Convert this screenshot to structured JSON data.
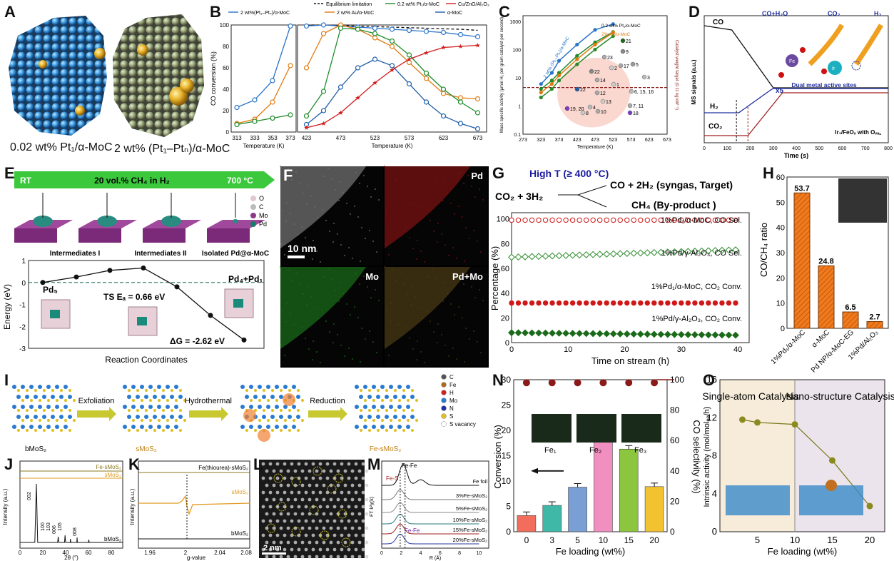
{
  "panels": {
    "A": {
      "label": "A",
      "caption_left": "0.02 wt% Pt₁/α-MoC",
      "caption_right": "2 wt% (Pt₁–Ptₙ)/α-MoC"
    },
    "B": {
      "label": "B"
    },
    "C": {
      "label": "C"
    },
    "D": {
      "label": "D",
      "ylabel": "MS signals (a.u.)",
      "xlabel": "Time (s)",
      "co_label": "CO",
      "h2_label": "H₂",
      "co2_label": "CO₂",
      "x5": "x5",
      "reaction_co": "CO+H₂O",
      "reaction_co2": "CO₂",
      "reaction_h2": "H₂",
      "sites": "Dual metal active sites",
      "catalyst": "Ir₁/FeOₓ with Oᵥₐ꜀",
      "fe": "Fe",
      "ir": "Ir",
      "ovac": "Oᵥₐ꜀"
    },
    "E": {
      "label": "E",
      "rt": "RT",
      "gas": "20 vol.% CH₄ in H₂",
      "temp": "700 °C",
      "stages": [
        "Intermediates I",
        "Intermediates II",
        "Isolated Pd@α-MoC"
      ],
      "legend": [
        "O",
        "C",
        "Mo",
        "Pd"
      ],
      "ylabel": "Energy (eV)",
      "xlabel": "Reaction Coordinates",
      "pd5": "Pd₅",
      "pd41": "Pd₄+Pd₁",
      "ts": "TS Eₐ = 0.66 eV",
      "dg": "ΔG = -2.62 eV"
    },
    "F": {
      "label": "F",
      "scale": "10 nm",
      "tiles": [
        "",
        "Pd",
        "Mo",
        "Pd+Mo"
      ]
    },
    "G": {
      "label": "G",
      "cond": "High T (≥ 400 °C)",
      "reactant": "CO₂ + 3H₂",
      "product_target": "CO + 2H₂ (syngas, Target)",
      "product_by": "CH₄ (By-product )",
      "ylabel": "Percentage (%)",
      "xlabel": "Time on stream (h)"
    },
    "H": {
      "label": "H",
      "ylabel": "CO/CH₄ ratio"
    },
    "I": {
      "label": "I",
      "steps": [
        "Exfoliation",
        "Hydrothermal",
        "Reduction"
      ],
      "materials": [
        "bMoS₂",
        "sMoS₂",
        "Fe-sMoS₂"
      ],
      "legend": [
        "C",
        "Fe",
        "H",
        "Mo",
        "N",
        "S",
        "S vacancy"
      ]
    },
    "J": {
      "label": "J",
      "ylabel": "Intensity (a.u.)",
      "xlabel": "2θ (°)",
      "traces": [
        "Fe-sMoS₂",
        "sMoS₂",
        "bMoS₂"
      ],
      "peaks": [
        "002",
        "100",
        "103",
        "006",
        "105",
        "008"
      ]
    },
    "K": {
      "label": "K",
      "ylabel": "Intensity (a.u.)",
      "xlabel": "g-value",
      "traces": [
        "Fe(thiourea)-sMoS₂",
        "sMoS₂",
        "bMoS₂"
      ]
    },
    "L": {
      "label": "L",
      "scale": "2 nm"
    },
    "M": {
      "label": "M",
      "ylabel": "FT k²χ(k)",
      "xlabel": "R (Å)",
      "fefe": "Fe-Fe",
      "fes": "Fe-S",
      "fefe2": "Fe-Fe",
      "traces": [
        "Fe foil",
        "3%Fe-sMoS₂",
        "5%Fe-sMoS₂",
        "10%Fe-sMoS₂",
        "15%Fe-sMoS₂",
        "20%Fe-sMoS₂"
      ]
    },
    "N": {
      "label": "N",
      "ylabel": "Conversion (%)",
      "ylabel2": "CO selectivity (%)",
      "xlabel": "Fe loading (wt%)",
      "insets": [
        "Fe₁",
        "Fe₂",
        "Fe₃"
      ]
    },
    "O": {
      "label": "O",
      "ylabel": "Intrinsic activity (mol/molₒₑ/h)",
      "xlabel": "Fe loading (wt%)",
      "region_left": "Single-atom Catalysis",
      "region_right": "Nano-structure Catalysis"
    }
  },
  "colors": {
    "pt_blue": "#2a74c8",
    "au_orange": "#e07a10",
    "pt02_green": "#1e8a2a",
    "cu_red": "#d11a1a",
    "moc_blue": "#1f5fa8",
    "bar_orange": "#f07a1c",
    "olive": "#8a8a1e",
    "emerald": "#1a9a3a"
  },
  "chart_data": [
    {
      "panel": "B",
      "type": "line",
      "xlabel": "Temperature (K)",
      "ylabel": "CO conversion (%)",
      "ylim": [
        0,
        100
      ],
      "legend": [
        "Equilibrium limitation",
        "2 wt%(Pt₁–Ptₙ)/α-MoC",
        "0.2 wt% Pt₁/α-MoC",
        "2 wt% Au/α-MoC",
        "Cu/ZnO/Al₂O₃",
        "α-MoC"
      ],
      "left": {
        "x": [
          313,
          333,
          353,
          373
        ],
        "xticks": [
          313,
          333,
          353,
          373
        ],
        "series": [
          {
            "name": "2 wt%(Pt₁–Ptₙ)/α-MoC",
            "values": [
              23,
              30,
              48,
              99
            ]
          },
          {
            "name": "2 wt% Au/α-MoC",
            "values": [
              8,
              12,
              28,
              62
            ]
          },
          {
            "name": "0.2 wt% Pt₁/α-MoC",
            "values": [
              7,
              10,
              13,
              16
            ]
          }
        ]
      },
      "right": {
        "x": [
          423,
          448,
          473,
          498,
          523,
          548,
          573,
          598,
          623,
          648,
          673
        ],
        "xticks": [
          423,
          473,
          523,
          573,
          623,
          673
        ],
        "series": [
          {
            "name": "Equilibrium limitation",
            "values": [
              100,
              100,
              99.5,
              99,
              98.5,
              98,
              97.5,
              97,
              96.5,
              96,
              95
            ]
          },
          {
            "name": "2 wt%(Pt₁–Ptₙ)/α-MoC",
            "values": [
              99,
              100,
              99,
              98,
              97,
              96,
              95,
              94,
              93,
              91,
              89
            ]
          },
          {
            "name": "2 wt% Au/α-MoC",
            "values": [
              60,
              92,
              100,
              96,
              88,
              80,
              65,
              50,
              36,
              32,
              31
            ]
          },
          {
            "name": "0.2 wt% Pt₁/α-MoC",
            "values": [
              15,
              38,
              97,
              96,
              92,
              85,
              72,
              55,
              40,
              28,
              18
            ]
          },
          {
            "name": "α-MoC",
            "values": [
              7,
              20,
              42,
              60,
              68,
              62,
              45,
              28,
              15,
              8,
              3
            ]
          },
          {
            "name": "Cu/ZnO/Al₂O₃",
            "values": [
              4,
              8,
              18,
              32,
              46,
              58,
              68,
              74,
              79,
              80,
              81
            ]
          }
        ]
      }
    },
    {
      "panel": "C",
      "type": "scatter",
      "xlabel": "Temperature (K)",
      "ylabel": "Mass specific activity (μmol H₂ per gram catalyst per second)",
      "ylabel2": "Catalyst weight target (0.11 kg kW⁻¹)",
      "xlim": [
        273,
        673
      ],
      "xticks": [
        273,
        323,
        373,
        423,
        473,
        523,
        573,
        623,
        673
      ],
      "yticks": [
        "0.1",
        "1",
        "10",
        "100",
        "1000"
      ],
      "target": 4.5,
      "series": [
        {
          "name": "0.2 wt% Pt₁/α-MoC",
          "x": [
            323,
            353,
            373,
            423,
            473,
            523
          ],
          "y": [
            4,
            8,
            15,
            60,
            180,
            420
          ]
        },
        {
          "name": "2% Au/α-MoC",
          "x": [
            323,
            353,
            373,
            423,
            473,
            523
          ],
          "y": [
            3,
            6,
            12,
            45,
            150,
            400
          ]
        },
        {
          "name": "2 wt% (Pt₁–Ptₙ)/α-MoC",
          "x": [
            323,
            353,
            373,
            423,
            473,
            523
          ],
          "y": [
            6,
            15,
            40,
            150,
            500,
            800
          ]
        },
        {
          "name": "green",
          "x": [
            323,
            353,
            373,
            423,
            473,
            523
          ],
          "y": [
            2,
            4,
            8,
            30,
            100,
            300
          ]
        }
      ],
      "points": [
        "9",
        "23",
        "2",
        "17",
        "5",
        "3",
        "22",
        "14",
        "1",
        "22",
        "12",
        "6, 15, 16",
        "13",
        "10",
        "4",
        "19, 20",
        "8",
        "7, 11",
        "18",
        "21"
      ]
    },
    {
      "panel": "D",
      "type": "line",
      "xlabel": "Time (s)",
      "ylabel": "MS signals (a.u.)",
      "xticks": [
        0,
        100,
        200,
        300,
        400,
        500,
        600,
        700,
        800
      ],
      "series": [
        "CO",
        "H₂",
        "CO₂"
      ]
    },
    {
      "panel": "E",
      "type": "line",
      "xlabel": "Reaction Coordinates",
      "ylabel": "Energy (eV)",
      "ylim": [
        -3,
        1
      ],
      "yticks": [
        1,
        0,
        -1,
        -2,
        -3
      ],
      "values": [
        0,
        0.25,
        0.55,
        0.66,
        -0.2,
        -1.5,
        -2.62
      ]
    },
    {
      "panel": "G",
      "type": "line",
      "xlabel": "Time on stream (h)",
      "ylabel": "Percentage (%)",
      "xlim": [
        0,
        42
      ],
      "ylim": [
        0,
        100
      ],
      "xticks": [
        0,
        10,
        20,
        30,
        40
      ],
      "yticks": [
        0,
        20,
        40,
        60,
        80,
        100
      ],
      "series": [
        {
          "name": "1%Pd₁/α-MoC, CO Sel.",
          "values": [
            99,
            99
          ]
        },
        {
          "name": "1%Pd/γ-Al₂O₃, CO Sel.",
          "values": [
            69,
            75
          ]
        },
        {
          "name": "1%Pd₁/α-MoC, CO₂ Conv.",
          "values": [
            32,
            32
          ]
        },
        {
          "name": "1%Pd/γ-Al₂O₃, CO₂ Conv.",
          "values": [
            8,
            6
          ]
        }
      ]
    },
    {
      "panel": "H",
      "type": "bar",
      "ylabel": "CO/CH₄ ratio",
      "ylim": [
        0,
        60
      ],
      "yticks": [
        0,
        10,
        20,
        30,
        40,
        50,
        60
      ],
      "categories": [
        "1%Pd₁/α-MoC",
        "α-MoC",
        "Pd NP/α-MoC-EG",
        "1%Pd/Al₂O₃"
      ],
      "values": [
        53.7,
        24.8,
        6.5,
        2.7
      ],
      "labels": [
        "53.7",
        "24.8",
        "6.5",
        "2.7"
      ]
    },
    {
      "panel": "J",
      "type": "line",
      "xlabel": "2θ (°)",
      "xticks": [
        0,
        20,
        40,
        60,
        80
      ]
    },
    {
      "panel": "K",
      "type": "line",
      "xlabel": "g-value",
      "xticks": [
        "1.96",
        "2",
        "2.04",
        "2.08"
      ]
    },
    {
      "panel": "M",
      "type": "line",
      "xlabel": "R (Å)",
      "xticks": [
        0,
        2,
        4,
        6,
        8,
        10
      ]
    },
    {
      "panel": "N",
      "type": "bar",
      "xlabel": "Fe loading (wt%)",
      "ylabel": "Conversion (%)",
      "ylabel2": "CO selectivity (%)",
      "ylim": [
        0,
        30
      ],
      "ylim2": [
        0,
        100
      ],
      "yticks": [
        0,
        5,
        10,
        15,
        20,
        25,
        30
      ],
      "yticks2": [
        0,
        20,
        40,
        60,
        80,
        100
      ],
      "categories": [
        "0",
        "3",
        "5",
        "10",
        "15",
        "20"
      ],
      "values": [
        3.2,
        5.2,
        8.8,
        18.7,
        16.3,
        8.9
      ],
      "selectivity": [
        98,
        98,
        98,
        98,
        98,
        98
      ],
      "bar_colors": [
        "#f26d5b",
        "#3fb8a8",
        "#7a9fd4",
        "#f08fc0",
        "#8cc63e",
        "#f2c230"
      ]
    },
    {
      "panel": "O",
      "type": "line",
      "xlabel": "Fe loading (wt%)",
      "ylabel": "Intrinsic activity (mol/molₒₑ/h)",
      "xlim": [
        0,
        22
      ],
      "ylim": [
        0,
        16
      ],
      "xticks": [
        5,
        10,
        15,
        20
      ],
      "yticks": [
        0,
        4,
        8,
        12,
        16
      ],
      "x": [
        3,
        5,
        10,
        15,
        20
      ],
      "values": [
        11.8,
        11.5,
        11.3,
        7.5,
        2.7
      ]
    }
  ]
}
